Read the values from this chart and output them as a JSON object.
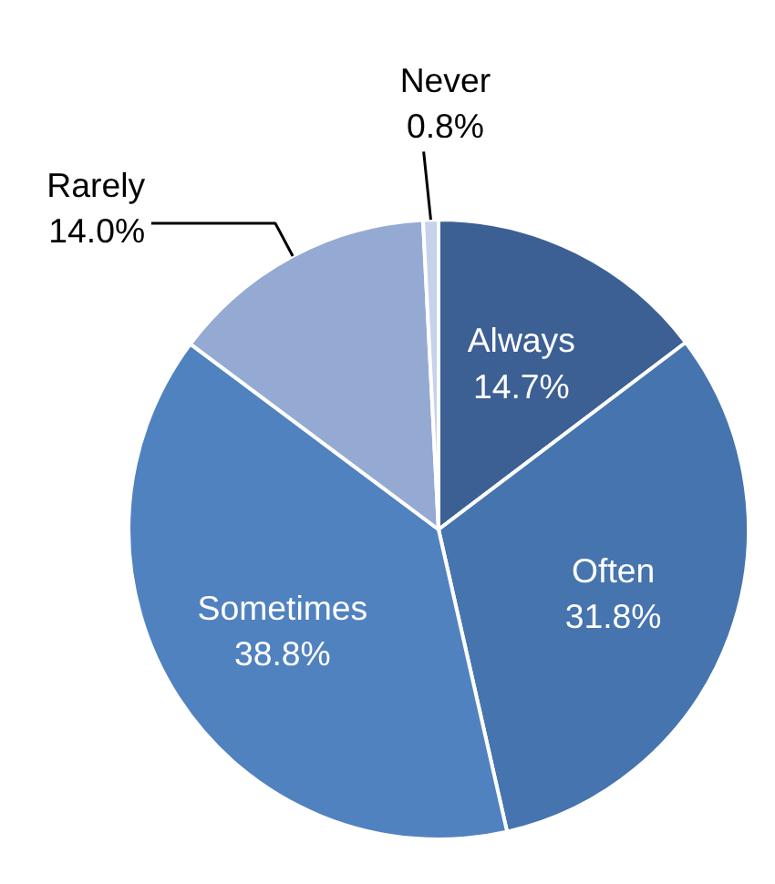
{
  "chart_data": {
    "type": "pie",
    "categories": [
      "Always",
      "Often",
      "Sometimes",
      "Rarely",
      "Never"
    ],
    "values": [
      14.7,
      31.8,
      38.8,
      14.0,
      0.8
    ],
    "value_labels": [
      "14.7%",
      "31.8%",
      "38.8%",
      "14.0%",
      "0.8%"
    ],
    "colors": [
      "#3c6094",
      "#4674ae",
      "#5182c0",
      "#95aad3",
      "#c5d2ea"
    ]
  }
}
